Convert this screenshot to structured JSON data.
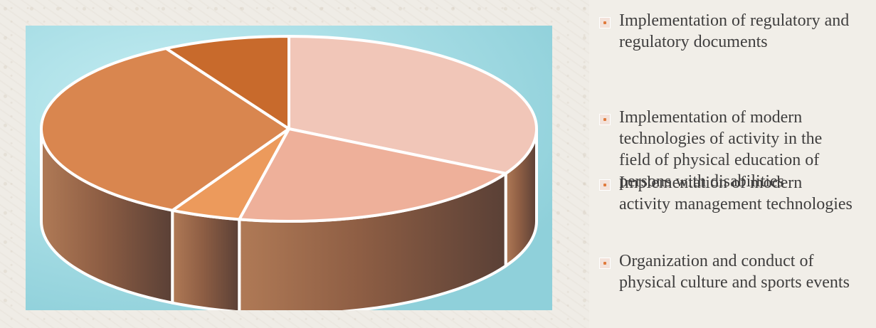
{
  "chart_data": {
    "type": "pie",
    "style": "3d",
    "categories": [
      "Implementation of regulatory and regulatory documents",
      "Implementation of modern technologies of activity in the field of physical education of persons with disabilities",
      "Implementation of modern activity management technologies",
      "Organization and conduct of physical culture and sports events"
    ],
    "values": [
      36,
      22,
      5,
      37
    ],
    "colors": [
      "#f1c6b8",
      "#eeb09a",
      "#ec9a5c",
      "#d9864f"
    ],
    "title": "",
    "legend_position": "right"
  },
  "extra_slice": {
    "value": 9,
    "color": "#c86a2c"
  }
}
